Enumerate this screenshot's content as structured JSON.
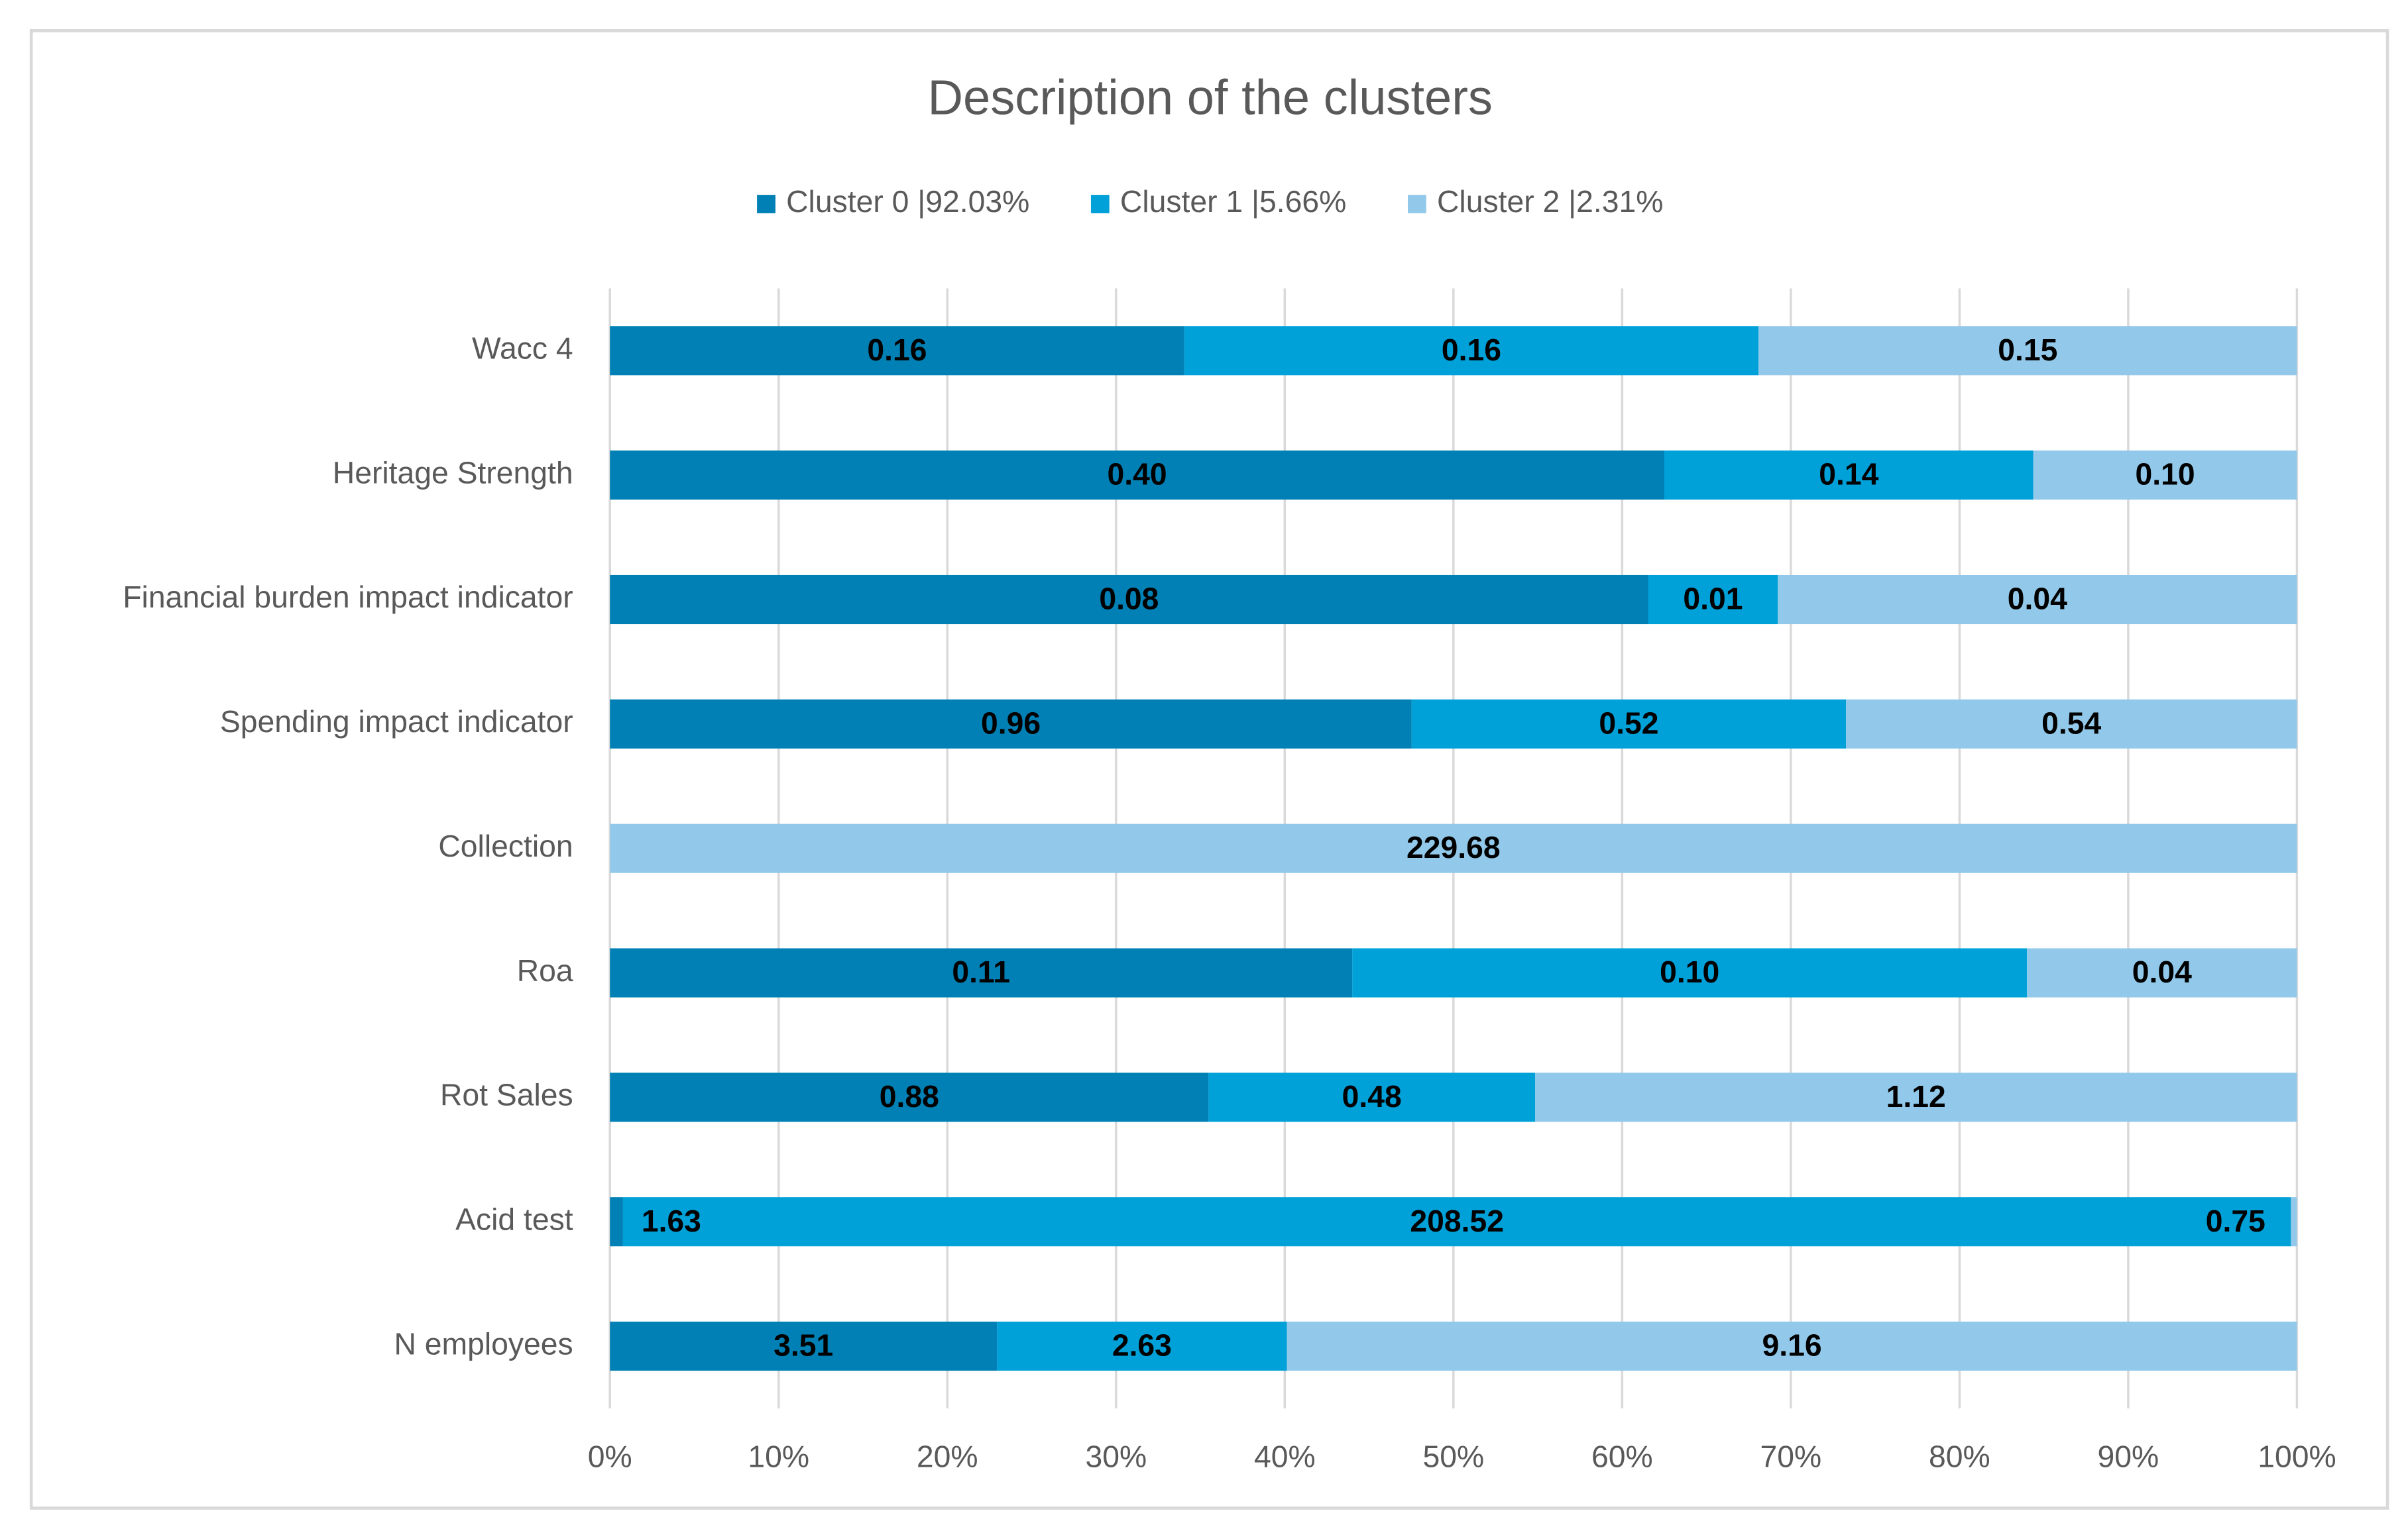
{
  "chart_data": {
    "type": "stacked_bar_100_horizontal",
    "title": "Description of the clusters",
    "categories": [
      "Wacc 4",
      "Heritage Strength",
      "Financial burden impact indicator",
      "Spending impact indicator",
      "Collection",
      "Roa",
      "Rot Sales",
      "Acid test",
      "N employees"
    ],
    "series": [
      {
        "name": "Cluster 0 |92.03%",
        "color": "#0080b4",
        "values": [
          0.16,
          0.4,
          0.08,
          0.96,
          null,
          0.11,
          0.88,
          1.63,
          3.51
        ],
        "value_labels": [
          "0.16",
          "0.40",
          "0.08",
          "0.96",
          null,
          "0.11",
          "0.88",
          "1.63",
          "3.51"
        ]
      },
      {
        "name": "Cluster 1 |5.66%",
        "color": "#00a0d8",
        "values": [
          0.16,
          0.14,
          0.01,
          0.52,
          null,
          0.1,
          0.48,
          208.52,
          2.63
        ],
        "value_labels": [
          "0.16",
          "0.14",
          "0.01",
          "0.52",
          null,
          "0.10",
          "0.48",
          "208.52",
          "2.63"
        ]
      },
      {
        "name": "Cluster 2 |2.31%",
        "color": "#92c9ea",
        "values": [
          0.15,
          0.1,
          0.04,
          0.54,
          229.68,
          0.04,
          1.12,
          0.75,
          9.16
        ],
        "value_labels": [
          "0.15",
          "0.10",
          "0.04",
          "0.54",
          "229.68",
          "0.04",
          "1.12",
          "0.75",
          "9.16"
        ]
      }
    ],
    "xlim": [
      0,
      100
    ],
    "xticks": [
      {
        "value": 0,
        "label": "0%"
      },
      {
        "value": 10,
        "label": "10%"
      },
      {
        "value": 20,
        "label": "20%"
      },
      {
        "value": 30,
        "label": "30%"
      },
      {
        "value": 40,
        "label": "40%"
      },
      {
        "value": 50,
        "label": "50%"
      },
      {
        "value": 60,
        "label": "60%"
      },
      {
        "value": 70,
        "label": "70%"
      },
      {
        "value": 80,
        "label": "80%"
      },
      {
        "value": 90,
        "label": "90%"
      },
      {
        "value": 100,
        "label": "100%"
      }
    ],
    "grid": true,
    "legend": "top"
  }
}
